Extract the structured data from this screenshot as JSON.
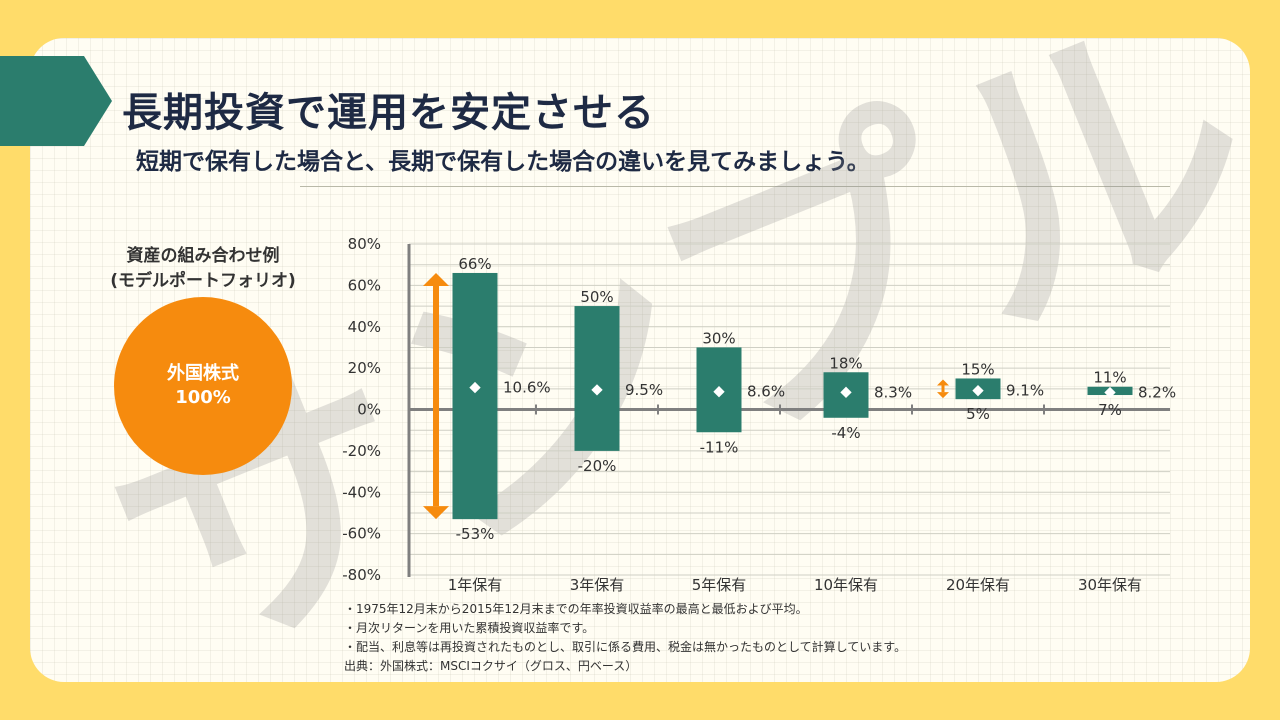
{
  "header": {
    "title": "長期投資で運用を安定させる",
    "subtitle": "短期で保有した場合と、長期で保有した場合の違いを見てみましょう。"
  },
  "portfolio": {
    "title_line1": "資産の組み合わせ例",
    "title_line2": "(モデルポートフォリオ)",
    "asset": "外国株式",
    "share": "100%",
    "color": "#F68B0E"
  },
  "watermark": "サンプル",
  "chart_data": {
    "type": "bar",
    "categories": [
      "1年保有",
      "3年保有",
      "5年保有",
      "10年保有",
      "20年保有",
      "30年保有"
    ],
    "max": [
      66,
      50,
      30,
      18,
      15,
      11
    ],
    "min": [
      -53,
      -20,
      -11,
      -4,
      5,
      7
    ],
    "average": [
      10.6,
      9.5,
      8.6,
      8.3,
      9.1,
      8.2
    ],
    "max_labels": [
      "66%",
      "50%",
      "30%",
      "18%",
      "15%",
      "11%"
    ],
    "min_labels": [
      "-53%",
      "-20%",
      "-11%",
      "-4%",
      "5%",
      "7%"
    ],
    "average_labels": [
      "10.6%",
      "9.5%",
      "8.6%",
      "8.3%",
      "9.1%",
      "8.2%"
    ],
    "yticks": [
      "80%",
      "60%",
      "40%",
      "20%",
      "0%",
      "-20%",
      "-40%",
      "-60%",
      "-80%"
    ],
    "ylim": [
      -80,
      80
    ],
    "bar_color": "#2B7D6D",
    "range_arrow_color": "#F68B0E",
    "range_arrows_on": [
      "1年保有",
      "20年保有"
    ],
    "grid": true
  },
  "notes": [
    "・1975年12月末から2015年12月末までの年率投資収益率の最高と最低および平均。",
    "・月次リターンを用いた累積投資収益率です。",
    "・配当、利息等は再投資されたものとし、取引に係る費用、税金は無かったものとして計算しています。",
    "出典：外国株式：MSCIコクサイ（グロス、円ベース）"
  ]
}
